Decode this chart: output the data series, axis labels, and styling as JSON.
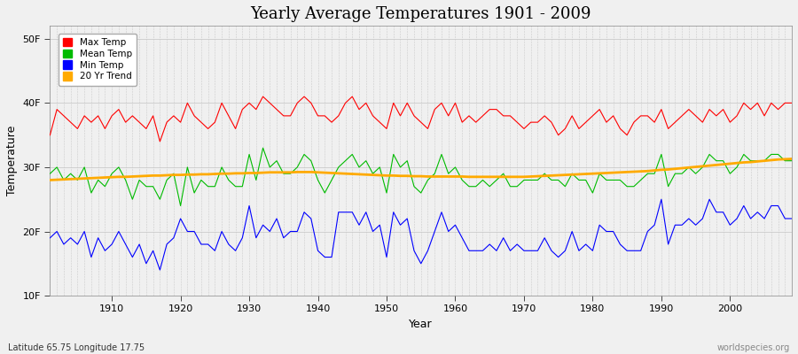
{
  "title": "Yearly Average Temperatures 1901 - 2009",
  "xlabel": "Year",
  "ylabel": "Temperature",
  "lat_lon_label": "Latitude 65.75 Longitude 17.75",
  "source_label": "worldspecies.org",
  "years": [
    1901,
    1902,
    1903,
    1904,
    1905,
    1906,
    1907,
    1908,
    1909,
    1910,
    1911,
    1912,
    1913,
    1914,
    1915,
    1916,
    1917,
    1918,
    1919,
    1920,
    1921,
    1922,
    1923,
    1924,
    1925,
    1926,
    1927,
    1928,
    1929,
    1930,
    1931,
    1932,
    1933,
    1934,
    1935,
    1936,
    1937,
    1938,
    1939,
    1940,
    1941,
    1942,
    1943,
    1944,
    1945,
    1946,
    1947,
    1948,
    1949,
    1950,
    1951,
    1952,
    1953,
    1954,
    1955,
    1956,
    1957,
    1958,
    1959,
    1960,
    1961,
    1962,
    1963,
    1964,
    1965,
    1966,
    1967,
    1968,
    1969,
    1970,
    1971,
    1972,
    1973,
    1974,
    1975,
    1976,
    1977,
    1978,
    1979,
    1980,
    1981,
    1982,
    1983,
    1984,
    1985,
    1986,
    1987,
    1988,
    1989,
    1990,
    1991,
    1992,
    1993,
    1994,
    1995,
    1996,
    1997,
    1998,
    1999,
    2000,
    2001,
    2002,
    2003,
    2004,
    2005,
    2006,
    2007,
    2008,
    2009
  ],
  "max_temp": [
    35,
    39,
    38,
    37,
    36,
    38,
    37,
    38,
    36,
    38,
    39,
    37,
    38,
    37,
    36,
    38,
    34,
    37,
    38,
    37,
    40,
    38,
    37,
    36,
    37,
    40,
    38,
    36,
    39,
    40,
    39,
    41,
    40,
    39,
    38,
    38,
    40,
    41,
    40,
    38,
    38,
    37,
    38,
    40,
    41,
    39,
    40,
    38,
    37,
    36,
    40,
    38,
    40,
    38,
    37,
    36,
    39,
    40,
    38,
    40,
    37,
    38,
    37,
    38,
    39,
    39,
    38,
    38,
    37,
    36,
    37,
    37,
    38,
    37,
    35,
    36,
    38,
    36,
    37,
    38,
    39,
    37,
    38,
    36,
    35,
    37,
    38,
    38,
    37,
    39,
    36,
    37,
    38,
    39,
    38,
    37,
    39,
    38,
    39,
    37,
    38,
    40,
    39,
    40,
    38,
    40,
    39,
    40,
    40
  ],
  "mean_temp": [
    29,
    30,
    28,
    29,
    28,
    30,
    26,
    28,
    27,
    29,
    30,
    28,
    25,
    28,
    27,
    27,
    25,
    28,
    29,
    24,
    30,
    26,
    28,
    27,
    27,
    30,
    28,
    27,
    27,
    32,
    28,
    33,
    30,
    31,
    29,
    29,
    30,
    32,
    31,
    28,
    26,
    28,
    30,
    31,
    32,
    30,
    31,
    29,
    30,
    26,
    32,
    30,
    31,
    27,
    26,
    28,
    29,
    32,
    29,
    30,
    28,
    27,
    27,
    28,
    27,
    28,
    29,
    27,
    27,
    28,
    28,
    28,
    29,
    28,
    28,
    27,
    29,
    28,
    28,
    26,
    29,
    28,
    28,
    28,
    27,
    27,
    28,
    29,
    29,
    32,
    27,
    29,
    29,
    30,
    29,
    30,
    32,
    31,
    31,
    29,
    30,
    32,
    31,
    31,
    31,
    32,
    32,
    31,
    31
  ],
  "min_temp": [
    19,
    20,
    18,
    19,
    18,
    20,
    16,
    19,
    17,
    18,
    20,
    18,
    16,
    18,
    15,
    17,
    14,
    18,
    19,
    22,
    20,
    20,
    18,
    18,
    17,
    20,
    18,
    17,
    19,
    24,
    19,
    21,
    20,
    22,
    19,
    20,
    20,
    23,
    22,
    17,
    16,
    16,
    23,
    23,
    23,
    21,
    23,
    20,
    21,
    16,
    23,
    21,
    22,
    17,
    15,
    17,
    20,
    23,
    20,
    21,
    19,
    17,
    17,
    17,
    18,
    17,
    19,
    17,
    18,
    17,
    17,
    17,
    19,
    17,
    16,
    17,
    20,
    17,
    18,
    17,
    21,
    20,
    20,
    18,
    17,
    17,
    17,
    20,
    21,
    25,
    18,
    21,
    21,
    22,
    21,
    22,
    25,
    23,
    23,
    21,
    22,
    24,
    22,
    23,
    22,
    24,
    24,
    22,
    22
  ],
  "trend": [
    28.0,
    28.05,
    28.1,
    28.15,
    28.2,
    28.25,
    28.3,
    28.35,
    28.4,
    28.45,
    28.5,
    28.5,
    28.55,
    28.6,
    28.65,
    28.7,
    28.7,
    28.75,
    28.8,
    28.8,
    28.85,
    28.85,
    28.9,
    28.9,
    28.95,
    29.0,
    29.0,
    29.05,
    29.05,
    29.1,
    29.1,
    29.15,
    29.2,
    29.2,
    29.2,
    29.2,
    29.25,
    29.25,
    29.25,
    29.2,
    29.15,
    29.1,
    29.05,
    29.0,
    28.95,
    28.9,
    28.85,
    28.8,
    28.75,
    28.7,
    28.7,
    28.65,
    28.65,
    28.6,
    28.6,
    28.55,
    28.55,
    28.55,
    28.55,
    28.55,
    28.55,
    28.5,
    28.5,
    28.5,
    28.5,
    28.5,
    28.5,
    28.5,
    28.5,
    28.5,
    28.55,
    28.6,
    28.65,
    28.7,
    28.75,
    28.8,
    28.85,
    28.9,
    28.95,
    29.0,
    29.05,
    29.1,
    29.15,
    29.2,
    29.25,
    29.3,
    29.35,
    29.4,
    29.5,
    29.6,
    29.65,
    29.75,
    29.85,
    29.95,
    30.05,
    30.15,
    30.25,
    30.35,
    30.45,
    30.55,
    30.65,
    30.75,
    30.8,
    30.9,
    31.0,
    31.1,
    31.2,
    31.25,
    31.3
  ],
  "max_color": "#ff0000",
  "mean_color": "#00bb00",
  "min_color": "#0000ff",
  "trend_color": "#ffaa00",
  "bg_color": "#f0f0f0",
  "plot_bg_color": "#f0f0f0",
  "grid_color": "#cccccc",
  "yticks": [
    10,
    20,
    30,
    40,
    50
  ],
  "ytick_labels": [
    "10F",
    "20F",
    "30F",
    "40F",
    "50F"
  ],
  "xticks": [
    1910,
    1920,
    1930,
    1940,
    1950,
    1960,
    1970,
    1980,
    1990,
    2000
  ],
  "ylim": [
    10,
    52
  ],
  "xlim": [
    1901,
    2009
  ]
}
